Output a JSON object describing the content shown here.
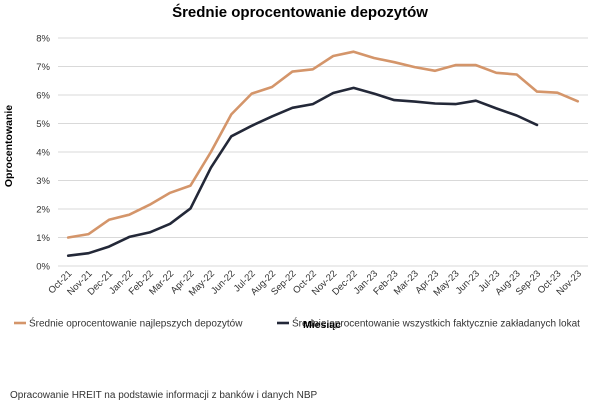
{
  "chart_data": {
    "type": "line",
    "title": "Średnie oprocentowanie depozytów",
    "xlabel": "Miesiąc",
    "ylabel": "Oprocentowanie",
    "categories": [
      "Oct-21",
      "Nov-21",
      "Dec-21",
      "Jan-22",
      "Feb-22",
      "Mar-22",
      "Apr-22",
      "May-22",
      "Jun-22",
      "Jul-22",
      "Aug-22",
      "Sep-22",
      "Oct-22",
      "Nov-22",
      "Dec-22",
      "Jan-23",
      "Feb-23",
      "Mar-23",
      "Apr-23",
      "May-23",
      "Jun-23",
      "Jul-23",
      "Aug-23",
      "Sep-23",
      "Oct-23",
      "Nov-23"
    ],
    "ylim": [
      0,
      8
    ],
    "yticks": [
      "0%",
      "1%",
      "2%",
      "3%",
      "4%",
      "5%",
      "6%",
      "7%",
      "8%"
    ],
    "grid": true,
    "legend_position": "bottom",
    "series": [
      {
        "name": "Średnie oprocentowanie najlepszych depozytów",
        "color": "#D4956A",
        "values": [
          1.0,
          1.12,
          1.62,
          1.8,
          2.15,
          2.57,
          2.82,
          4.0,
          5.32,
          6.05,
          6.28,
          6.82,
          6.9,
          7.37,
          7.52,
          7.3,
          7.15,
          6.98,
          6.85,
          7.05,
          7.05,
          6.78,
          6.72,
          6.12,
          6.08,
          5.78
        ]
      },
      {
        "name": "Średnie oprocentowanie wszystkich faktycznie zakładanych lokat",
        "color": "#232838",
        "values": [
          0.36,
          0.45,
          0.68,
          1.02,
          1.18,
          1.48,
          2.02,
          3.45,
          4.55,
          4.92,
          5.25,
          5.55,
          5.68,
          6.07,
          6.25,
          6.05,
          5.82,
          5.77,
          5.7,
          5.68,
          5.8,
          5.53,
          5.28,
          4.95,
          null,
          null
        ]
      }
    ]
  },
  "footer": {
    "source": "Opracowanie HREIT na podstawie informacji z banków i danych NBP"
  }
}
